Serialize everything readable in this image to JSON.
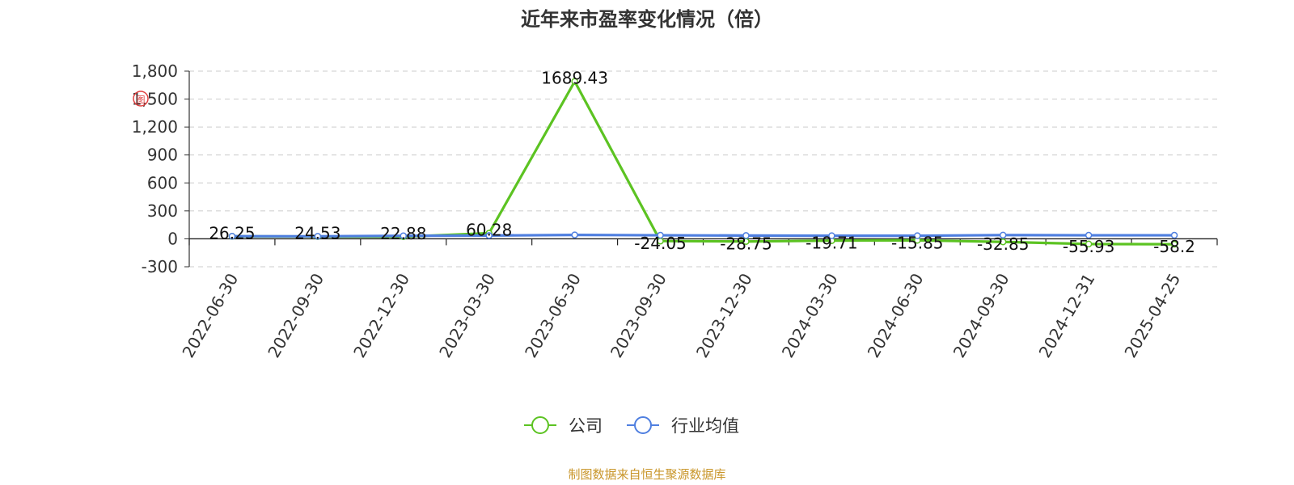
{
  "title": "近年来市盈率变化情况（倍）",
  "source_note": "制图数据来自恒生聚源数据库",
  "watermark": "图",
  "colors": {
    "company": "#5cc322",
    "industry": "#4f7fe0",
    "grid": "#cccccc",
    "axis": "#333333",
    "source": "#c9962a"
  },
  "chart_data": {
    "type": "line",
    "title": "近年来市盈率变化情况（倍）",
    "categories": [
      "2022-06-30",
      "2022-09-30",
      "2022-12-30",
      "2023-03-30",
      "2023-06-30",
      "2023-09-30",
      "2023-12-30",
      "2024-03-30",
      "2024-06-30",
      "2024-09-30",
      "2024-12-31",
      "2025-04-25"
    ],
    "ylim": [
      -300,
      1800
    ],
    "yticks": [
      -300,
      0,
      300,
      600,
      900,
      1200,
      1500,
      1800
    ],
    "ytick_labels": [
      "-300",
      "0",
      "300",
      "600",
      "900",
      "1,200",
      "1,500",
      "1,800"
    ],
    "grid": true,
    "legend_position": "bottom",
    "series": [
      {
        "name": "公司",
        "color": "#5cc322",
        "values": [
          26.25,
          24.53,
          22.88,
          60.28,
          1689.43,
          -24.05,
          -28.75,
          -19.71,
          -15.85,
          -32.85,
          -55.93,
          -58.2
        ],
        "labels": [
          "26.25",
          "24.53",
          "22.88",
          "60.28",
          "1689.43",
          "-24.05",
          "-28.75",
          "-19.71",
          "-15.85",
          "-32.85",
          "-55.93",
          "-58.2"
        ]
      },
      {
        "name": "行业均值",
        "color": "#4f7fe0",
        "values": [
          28,
          27,
          32,
          35,
          42,
          38,
          35,
          33,
          33,
          40,
          38,
          38
        ]
      }
    ]
  }
}
